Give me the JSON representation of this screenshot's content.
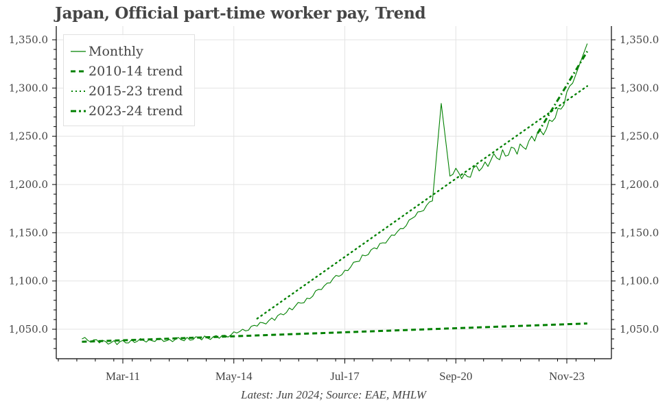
{
  "title": "Japan, Official part-time worker pay, Trend",
  "source_note": "Latest: Jun 2024; Source: EAE, MHLW",
  "colors": {
    "series": "#008000",
    "grid": "#e3e3e3",
    "axis": "#000000",
    "text": "#444444"
  },
  "legend": {
    "items": [
      {
        "label": "Monthly",
        "style": "solid"
      },
      {
        "label": "2010-14 trend",
        "style": "dashed"
      },
      {
        "label": "2015-23 trend",
        "style": "dotted"
      },
      {
        "label": "2023-24 trend",
        "style": "dashdot"
      }
    ]
  },
  "chart_data": {
    "type": "line",
    "title": "Japan, Official part-time worker pay, Trend",
    "xlabel": "",
    "ylabel": "",
    "x_tick_labels": [
      "Mar-11",
      "May-14",
      "Jul-17",
      "Sep-20",
      "Nov-23"
    ],
    "y_tick_labels": [
      "1,050.0",
      "1,100.0",
      "1,150.0",
      "1,200.0",
      "1,250.0",
      "1,300.0",
      "1,350.0"
    ],
    "y_ticks": [
      1050,
      1100,
      1150,
      1200,
      1250,
      1300,
      1350
    ],
    "ylim": [
      1020,
      1357
    ],
    "xlim": [
      "Jul-09",
      "Dec-24"
    ],
    "grid": true,
    "legend_position": "upper left",
    "dual_y_axis": true,
    "series": [
      {
        "name": "Monthly",
        "style": "solid",
        "x": [
          "Jan-10",
          "Jul-10",
          "Jan-11",
          "Jul-11",
          "Jan-12",
          "Jul-12",
          "Jan-13",
          "Jul-13",
          "Jan-14",
          "Jul-14",
          "Jan-15",
          "Jul-15",
          "Jan-16",
          "Jul-16",
          "Jan-17",
          "Jul-17",
          "Jan-18",
          "Jul-18",
          "Jan-19",
          "Jul-19",
          "Jan-20",
          "Apr-20",
          "Jul-20",
          "Jan-21",
          "Jul-21",
          "Jan-22",
          "Jul-22",
          "Jan-23",
          "Jul-23",
          "Jan-24",
          "Jun-24"
        ],
        "values": [
          1040,
          1037,
          1036,
          1038,
          1039,
          1039,
          1040,
          1041,
          1042,
          1047,
          1054,
          1061,
          1072,
          1083,
          1098,
          1110,
          1125,
          1137,
          1150,
          1167,
          1183,
          1284,
          1213,
          1210,
          1222,
          1232,
          1237,
          1250,
          1268,
          1305,
          1346
        ]
      },
      {
        "name": "2010-14 trend",
        "style": "dashed",
        "x": [
          "Jan-10",
          "Jun-24"
        ],
        "values": [
          1037,
          1056
        ]
      },
      {
        "name": "2015-23 trend",
        "style": "dotted",
        "x": [
          "Jan-15",
          "Jun-24"
        ],
        "values": [
          1061,
          1302
        ]
      },
      {
        "name": "2023-24 trend",
        "style": "dashdot",
        "x": [
          "Jan-23",
          "Jun-24"
        ],
        "values": [
          1253,
          1338
        ]
      }
    ]
  }
}
